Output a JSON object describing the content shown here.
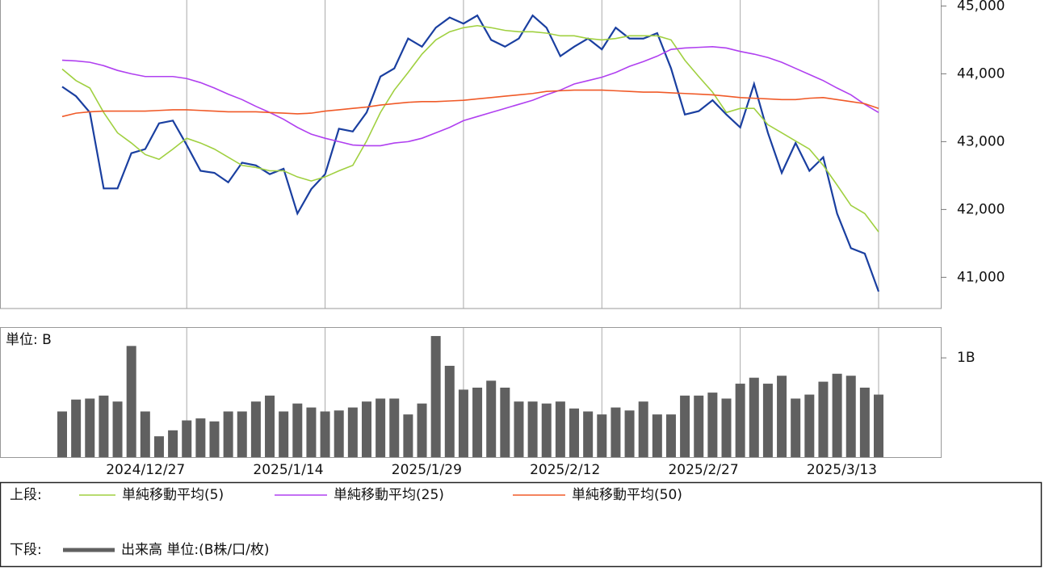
{
  "chart_data": [
    {
      "type": "line",
      "ylim": [
        40540,
        45100
      ],
      "yticks": [
        {
          "value": 41000,
          "label": "41,000"
        },
        {
          "value": 42000,
          "label": "42,000"
        },
        {
          "value": 43000,
          "label": "43,000"
        },
        {
          "value": 44000,
          "label": "44,000"
        },
        {
          "value": 45000,
          "label": "45,000"
        }
      ],
      "series": [
        {
          "color": "#1a3fa0",
          "values": [
            43810,
            43670,
            43430,
            42310,
            42310,
            42830,
            42890,
            43270,
            43310,
            42950,
            42570,
            42540,
            42400,
            42690,
            42650,
            42520,
            42600,
            41940,
            42300,
            42520,
            43190,
            43150,
            43430,
            43960,
            44080,
            44520,
            44400,
            44680,
            44830,
            44740,
            44860,
            44500,
            44400,
            44520,
            44860,
            44680,
            44260,
            44400,
            44520,
            44360,
            44680,
            44520,
            44520,
            44600,
            44080,
            43400,
            43450,
            43610,
            43400,
            43210,
            43850,
            43130,
            42540,
            42980,
            42570,
            42770,
            41940,
            41430,
            41350,
            40790
          ]
        },
        {
          "name": "単純移動平均(5)",
          "color": "#a0d040",
          "values": [
            44070,
            43900,
            43790,
            43430,
            43130,
            42980,
            42810,
            42740,
            42890,
            43050,
            42980,
            42890,
            42770,
            42650,
            42620,
            42570,
            42570,
            42480,
            42420,
            42480,
            42570,
            42650,
            43010,
            43430,
            43760,
            44020,
            44290,
            44500,
            44620,
            44680,
            44710,
            44680,
            44640,
            44620,
            44620,
            44600,
            44560,
            44560,
            44520,
            44500,
            44520,
            44560,
            44560,
            44560,
            44500,
            44200,
            43960,
            43730,
            43430,
            43490,
            43490,
            43250,
            43130,
            43010,
            42890,
            42650,
            42360,
            42060,
            41940,
            41670
          ]
        },
        {
          "name": "単純移動平均(25)",
          "color": "#b040f0",
          "values": [
            44200,
            44190,
            44170,
            44120,
            44050,
            44000,
            43960,
            43960,
            43960,
            43930,
            43870,
            43790,
            43700,
            43620,
            43520,
            43430,
            43330,
            43210,
            43110,
            43050,
            43000,
            42950,
            42940,
            42940,
            42980,
            43000,
            43050,
            43130,
            43210,
            43310,
            43370,
            43430,
            43490,
            43550,
            43610,
            43690,
            43760,
            43850,
            43900,
            43950,
            44020,
            44110,
            44180,
            44260,
            44360,
            44380,
            44390,
            44400,
            44380,
            44330,
            44290,
            44240,
            44170,
            44080,
            43990,
            43900,
            43790,
            43690,
            43550,
            43430
          ]
        },
        {
          "name": "単純移動平均(50)",
          "color": "#f05a28",
          "values": [
            43370,
            43420,
            43440,
            43450,
            43450,
            43450,
            43450,
            43460,
            43470,
            43470,
            43460,
            43450,
            43440,
            43440,
            43440,
            43430,
            43420,
            43410,
            43420,
            43450,
            43470,
            43490,
            43510,
            43540,
            43560,
            43580,
            43590,
            43590,
            43600,
            43610,
            43630,
            43650,
            43670,
            43690,
            43710,
            43740,
            43750,
            43760,
            43760,
            43760,
            43750,
            43740,
            43730,
            43730,
            43720,
            43710,
            43700,
            43690,
            43670,
            43650,
            43640,
            43630,
            43620,
            43620,
            43640,
            43650,
            43620,
            43590,
            43560,
            43490
          ]
        }
      ]
    },
    {
      "type": "bar",
      "unit_label": "単位: B",
      "ylim": [
        0,
        1.31
      ],
      "yticks": [
        {
          "value": 1,
          "label": "1B"
        }
      ],
      "categories": [
        null,
        null,
        null,
        null,
        null,
        null,
        null,
        null,
        null,
        "2024/12/27",
        null,
        null,
        null,
        null,
        null,
        null,
        null,
        null,
        null,
        "2025/1/14",
        null,
        null,
        null,
        null,
        null,
        null,
        null,
        null,
        null,
        "2025/1/29",
        null,
        null,
        null,
        null,
        null,
        null,
        null,
        null,
        null,
        "2025/2/12",
        null,
        null,
        null,
        null,
        null,
        null,
        null,
        null,
        null,
        "2025/2/27",
        null,
        null,
        null,
        null,
        null,
        null,
        null,
        null,
        null,
        "2025/3/13"
      ],
      "series": [
        {
          "name": "出来高 単位:(B株/口/枚)",
          "color": "#606060",
          "values": [
            0.46,
            0.58,
            0.59,
            0.62,
            0.56,
            1.12,
            0.46,
            0.21,
            0.27,
            0.37,
            0.39,
            0.36,
            0.46,
            0.46,
            0.56,
            0.62,
            0.46,
            0.54,
            0.5,
            0.46,
            0.47,
            0.5,
            0.56,
            0.59,
            0.59,
            0.43,
            0.54,
            1.22,
            0.92,
            0.68,
            0.7,
            0.77,
            0.7,
            0.56,
            0.56,
            0.54,
            0.56,
            0.49,
            0.46,
            0.43,
            0.5,
            0.47,
            0.56,
            0.43,
            0.43,
            0.62,
            0.62,
            0.65,
            0.59,
            0.74,
            0.8,
            0.74,
            0.82,
            0.59,
            0.63,
            0.76,
            0.84,
            0.82,
            0.7,
            0.63
          ]
        }
      ]
    }
  ],
  "legend": {
    "upper": "上段:",
    "lower": "下段:"
  }
}
